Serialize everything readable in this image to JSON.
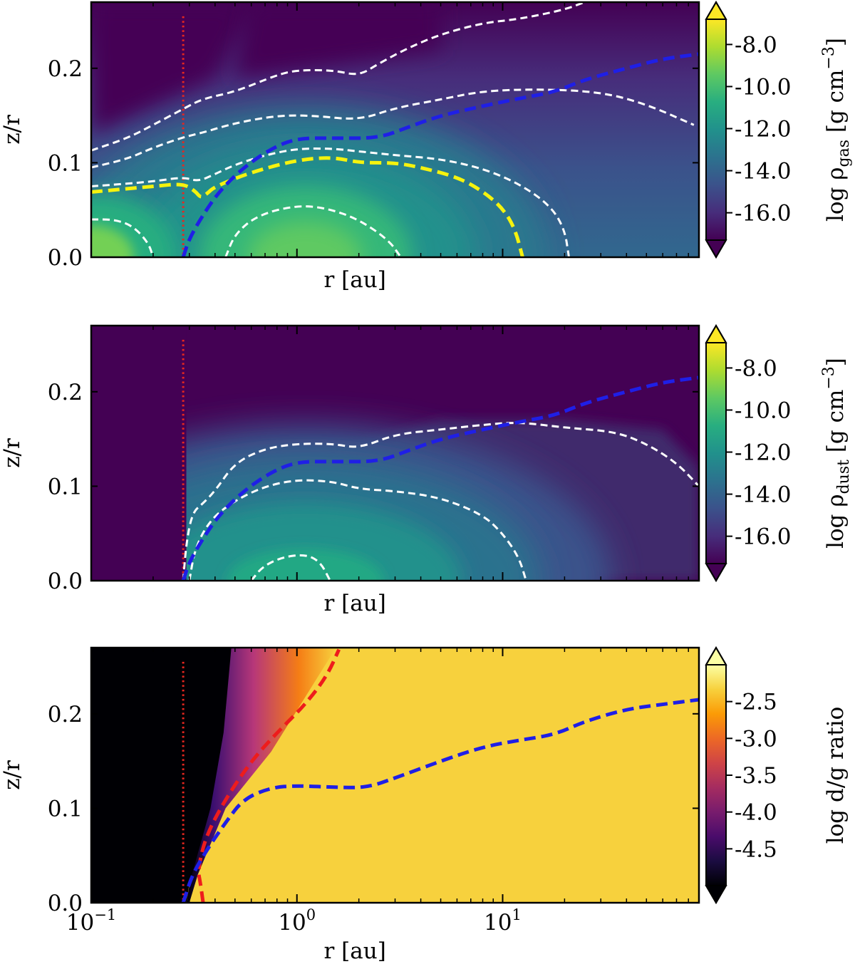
{
  "chart_data": [
    {
      "type": "heatmap",
      "panel": "gas",
      "xlabel": "r [au]",
      "ylabel": "z/r",
      "xscale": "log",
      "xlim": [
        0.1,
        90
      ],
      "ylim": [
        0.0,
        0.27
      ],
      "yticks": [
        "0.0",
        "0.1",
        "0.2"
      ],
      "xtick_labels_shown": false,
      "colormap": "viridis",
      "colorbar": {
        "label": "log ρgas [g cm⁻³]",
        "label_main": "log ρ",
        "label_sub": "gas",
        "label_unit": " [g cm",
        "label_sup": "−3",
        "label_end": "]",
        "ticks": [
          "-8.0",
          "-10.0",
          "-12.0",
          "-14.0",
          "-16.0"
        ],
        "range": [
          -17.3,
          -6.8
        ],
        "extend": "both"
      },
      "vline_r": 0.28,
      "contours": [
        {
          "color": "white",
          "points": [
            [
              0.1,
              0.113
            ],
            [
              0.15,
              0.126
            ],
            [
              0.2,
              0.14
            ],
            [
              0.28,
              0.157
            ],
            [
              0.35,
              0.168
            ],
            [
              0.5,
              0.175
            ],
            [
              0.8,
              0.193
            ],
            [
              1.0,
              0.198
            ],
            [
              1.5,
              0.198
            ],
            [
              2.0,
              0.192
            ],
            [
              2.5,
              0.205
            ],
            [
              3.5,
              0.222
            ],
            [
              5.0,
              0.236
            ],
            [
              8.0,
              0.248
            ],
            [
              12.0,
              0.252
            ],
            [
              20.0,
              0.262
            ],
            [
              25.0,
              0.27
            ]
          ]
        },
        {
          "color": "white",
          "points": [
            [
              0.1,
              0.095
            ],
            [
              0.15,
              0.104
            ],
            [
              0.2,
              0.116
            ],
            [
              0.28,
              0.127
            ],
            [
              0.35,
              0.132
            ],
            [
              0.5,
              0.142
            ],
            [
              0.8,
              0.15
            ],
            [
              1.2,
              0.15
            ],
            [
              2.0,
              0.145
            ],
            [
              3.0,
              0.158
            ],
            [
              5.0,
              0.167
            ],
            [
              8.0,
              0.176
            ],
            [
              15.0,
              0.178
            ],
            [
              30.0,
              0.175
            ],
            [
              50.0,
              0.162
            ],
            [
              85.0,
              0.14
            ]
          ]
        },
        {
          "color": "white",
          "points": [
            [
              0.1,
              0.075
            ],
            [
              0.2,
              0.08
            ],
            [
              0.28,
              0.085
            ],
            [
              0.33,
              0.08
            ],
            [
              0.4,
              0.088
            ],
            [
              0.5,
              0.098
            ],
            [
              0.7,
              0.108
            ],
            [
              1.0,
              0.115
            ],
            [
              1.5,
              0.115
            ],
            [
              2.0,
              0.112
            ],
            [
              3.0,
              0.108
            ],
            [
              5.0,
              0.104
            ],
            [
              8.0,
              0.094
            ],
            [
              12.0,
              0.078
            ],
            [
              17.0,
              0.055
            ],
            [
              20.0,
              0.03
            ],
            [
              21.0,
              0.0
            ]
          ]
        },
        {
          "color": "white",
          "points": [
            [
              0.1,
              0.04
            ],
            [
              0.13,
              0.04
            ],
            [
              0.16,
              0.033
            ],
            [
              0.19,
              0.015
            ],
            [
              0.2,
              0.0
            ]
          ]
        },
        {
          "color": "white",
          "points": [
            [
              0.45,
              0.0
            ],
            [
              0.5,
              0.025
            ],
            [
              0.65,
              0.045
            ],
            [
              1.0,
              0.055
            ],
            [
              1.4,
              0.052
            ],
            [
              2.0,
              0.04
            ],
            [
              2.8,
              0.018
            ],
            [
              3.2,
              0.0
            ]
          ]
        },
        {
          "color": "yellow",
          "points": [
            [
              0.1,
              0.069
            ],
            [
              0.2,
              0.075
            ],
            [
              0.28,
              0.078
            ],
            [
              0.32,
              0.07
            ],
            [
              0.34,
              0.063
            ],
            [
              0.36,
              0.066
            ],
            [
              0.4,
              0.075
            ],
            [
              0.6,
              0.09
            ],
            [
              1.0,
              0.103
            ],
            [
              1.5,
              0.106
            ],
            [
              2.0,
              0.1
            ],
            [
              3.0,
              0.1
            ],
            [
              4.0,
              0.095
            ],
            [
              6.0,
              0.085
            ],
            [
              8.0,
              0.07
            ],
            [
              10.0,
              0.052
            ],
            [
              11.5,
              0.03
            ],
            [
              12.5,
              0.0
            ]
          ]
        },
        {
          "color": "blue",
          "points": [
            [
              0.28,
              0.0
            ],
            [
              0.3,
              0.02
            ],
            [
              0.35,
              0.045
            ],
            [
              0.42,
              0.07
            ],
            [
              0.55,
              0.095
            ],
            [
              0.75,
              0.115
            ],
            [
              1.0,
              0.126
            ],
            [
              1.5,
              0.126
            ],
            [
              2.5,
              0.126
            ],
            [
              3.5,
              0.138
            ],
            [
              5.0,
              0.15
            ],
            [
              8.0,
              0.16
            ],
            [
              12.0,
              0.168
            ],
            [
              18.0,
              0.175
            ],
            [
              25.0,
              0.188
            ],
            [
              40.0,
              0.2
            ],
            [
              60.0,
              0.21
            ],
            [
              90.0,
              0.215
            ]
          ]
        }
      ]
    },
    {
      "type": "heatmap",
      "panel": "dust",
      "xlabel": "r [au]",
      "ylabel": "z/r",
      "xscale": "log",
      "xlim": [
        0.1,
        90
      ],
      "ylim": [
        0.0,
        0.27
      ],
      "yticks": [
        "0.0",
        "0.1",
        "0.2"
      ],
      "xtick_labels_shown": false,
      "colormap": "viridis",
      "colorbar": {
        "label": "log ρdust [g cm⁻³]",
        "label_main": "log ρ",
        "label_sub": "dust",
        "label_unit": " [g cm",
        "label_sup": "−3",
        "label_end": "]",
        "ticks": [
          "-8.0",
          "-10.0",
          "-12.0",
          "-14.0",
          "-16.0"
        ],
        "range": [
          -17.3,
          -6.8
        ],
        "extend": "both"
      },
      "vline_r": 0.28,
      "contours": [
        {
          "color": "white",
          "points": [
            [
              0.28,
              0.0
            ],
            [
              0.29,
              0.04
            ],
            [
              0.31,
              0.072
            ],
            [
              0.35,
              0.082
            ],
            [
              0.4,
              0.095
            ],
            [
              0.5,
              0.125
            ],
            [
              0.7,
              0.14
            ],
            [
              1.0,
              0.145
            ],
            [
              1.5,
              0.145
            ],
            [
              2.0,
              0.14
            ],
            [
              3.0,
              0.155
            ],
            [
              5.0,
              0.16
            ],
            [
              8.0,
              0.165
            ],
            [
              12.0,
              0.168
            ],
            [
              20.0,
              0.162
            ],
            [
              35.0,
              0.158
            ],
            [
              50.0,
              0.145
            ],
            [
              70.0,
              0.125
            ],
            [
              90.0,
              0.1
            ]
          ]
        },
        {
          "color": "white",
          "points": [
            [
              0.3,
              0.0
            ],
            [
              0.32,
              0.035
            ],
            [
              0.38,
              0.065
            ],
            [
              0.5,
              0.085
            ],
            [
              0.7,
              0.1
            ],
            [
              1.0,
              0.107
            ],
            [
              1.5,
              0.105
            ],
            [
              2.0,
              0.097
            ],
            [
              3.0,
              0.095
            ],
            [
              5.0,
              0.088
            ],
            [
              8.0,
              0.07
            ],
            [
              10.0,
              0.05
            ],
            [
              12.0,
              0.025
            ],
            [
              13.0,
              0.0
            ]
          ]
        },
        {
          "color": "white",
          "points": [
            [
              0.6,
              0.0
            ],
            [
              0.68,
              0.015
            ],
            [
              0.85,
              0.025
            ],
            [
              1.1,
              0.028
            ],
            [
              1.3,
              0.02
            ],
            [
              1.45,
              0.0
            ]
          ]
        },
        {
          "color": "blue",
          "points": [
            [
              0.28,
              0.0
            ],
            [
              0.3,
              0.02
            ],
            [
              0.35,
              0.045
            ],
            [
              0.42,
              0.07
            ],
            [
              0.55,
              0.095
            ],
            [
              0.75,
              0.115
            ],
            [
              1.0,
              0.126
            ],
            [
              1.5,
              0.126
            ],
            [
              2.5,
              0.126
            ],
            [
              3.5,
              0.138
            ],
            [
              5.0,
              0.15
            ],
            [
              8.0,
              0.16
            ],
            [
              12.0,
              0.168
            ],
            [
              18.0,
              0.175
            ],
            [
              25.0,
              0.188
            ],
            [
              40.0,
              0.2
            ],
            [
              60.0,
              0.21
            ],
            [
              90.0,
              0.215
            ]
          ]
        }
      ]
    },
    {
      "type": "heatmap",
      "panel": "ratio",
      "xlabel": "r [au]",
      "ylabel": "z/r",
      "xscale": "log",
      "xlim": [
        0.1,
        90
      ],
      "ylim": [
        0.0,
        0.27
      ],
      "yticks": [
        "0.0",
        "0.1",
        "0.2"
      ],
      "xticks": [
        0.1,
        1,
        10
      ],
      "xtick_labels": [
        {
          "base": "10",
          "exp": "−1"
        },
        {
          "base": "10",
          "exp": "0"
        },
        {
          "base": "10",
          "exp": "1"
        }
      ],
      "xtick_labels_shown": true,
      "colormap": "inferno",
      "colorbar": {
        "label": "log d/g ratio",
        "label_main": "log d/g ratio",
        "ticks": [
          "-2.5",
          "-3.0",
          "-3.5",
          "-4.0",
          "-4.5"
        ],
        "range": [
          -5.0,
          -2.0
        ],
        "extend": "both"
      },
      "vline_r": 0.28,
      "contours": [
        {
          "color": "red",
          "points": [
            [
              0.35,
              0.0
            ],
            [
              0.34,
              0.02
            ],
            [
              0.33,
              0.035
            ],
            [
              0.36,
              0.07
            ],
            [
              0.45,
              0.11
            ],
            [
              0.6,
              0.15
            ],
            [
              0.8,
              0.18
            ],
            [
              1.1,
              0.21
            ],
            [
              1.4,
              0.24
            ],
            [
              1.6,
              0.268
            ]
          ]
        },
        {
          "color": "blue",
          "points": [
            [
              0.28,
              0.0
            ],
            [
              0.31,
              0.03
            ],
            [
              0.37,
              0.058
            ],
            [
              0.45,
              0.085
            ],
            [
              0.55,
              0.11
            ],
            [
              0.75,
              0.122
            ],
            [
              1.0,
              0.124
            ],
            [
              1.6,
              0.122
            ],
            [
              2.2,
              0.122
            ],
            [
              3.0,
              0.132
            ],
            [
              5.0,
              0.15
            ],
            [
              8.0,
              0.165
            ],
            [
              12.0,
              0.172
            ],
            [
              18.0,
              0.178
            ],
            [
              25.0,
              0.192
            ],
            [
              40.0,
              0.205
            ],
            [
              60.0,
              0.21
            ],
            [
              90.0,
              0.215
            ]
          ]
        }
      ]
    }
  ]
}
